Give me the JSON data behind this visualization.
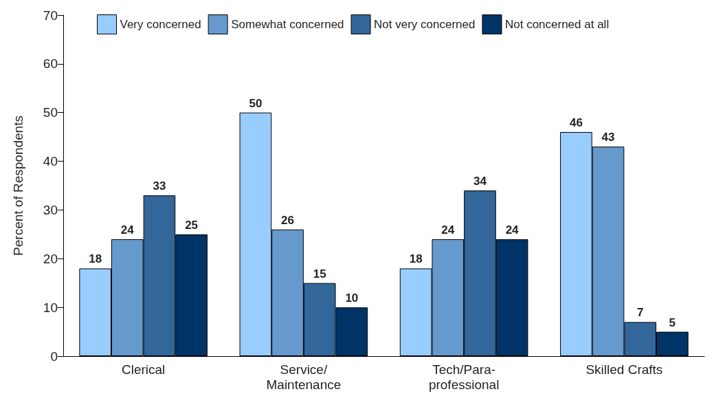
{
  "chart_data": {
    "type": "bar",
    "ylabel": "Percent of Respondents",
    "categories": [
      "Clerical",
      "Service/\nMaintenance",
      "Tech/Para-\nprofessional",
      "Skilled Crafts"
    ],
    "series": [
      {
        "name": "Very concerned",
        "color": "#99ccff",
        "values": [
          18,
          50,
          18,
          46
        ]
      },
      {
        "name": "Somewhat concerned",
        "color": "#6699cc",
        "values": [
          24,
          26,
          24,
          43
        ]
      },
      {
        "name": "Not very concerned",
        "color": "#336699",
        "values": [
          33,
          15,
          34,
          7
        ]
      },
      {
        "name": "Not concerned at all",
        "color": "#003366",
        "values": [
          25,
          10,
          24,
          5
        ]
      }
    ],
    "ylim": [
      0,
      70
    ],
    "yticks": [
      0,
      10,
      20,
      30,
      40,
      50,
      60,
      70
    ],
    "grid": false,
    "legend": "top",
    "data_labels": true
  }
}
